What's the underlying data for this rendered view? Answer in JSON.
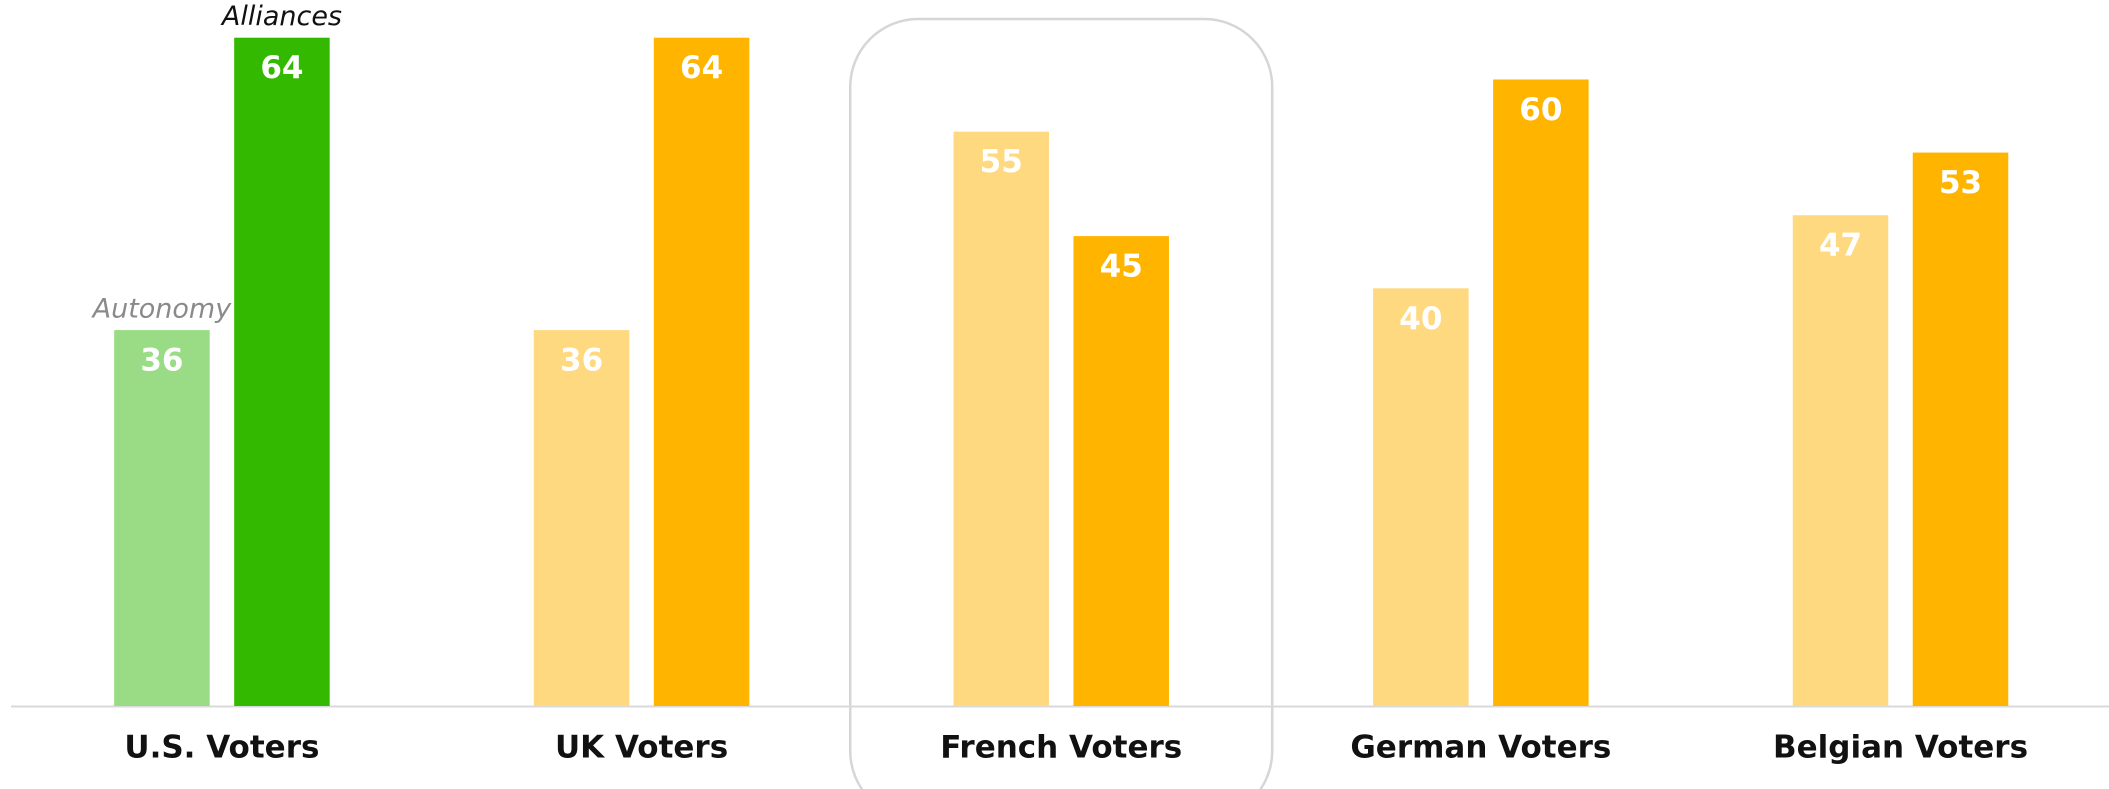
{
  "chart_data": {
    "type": "bar",
    "categories": [
      "U.S. Voters",
      "UK Voters",
      "French Voters",
      "German Voters",
      "Belgian Voters"
    ],
    "series": [
      {
        "name": "Autonomy",
        "values": [
          36,
          36,
          55,
          40,
          47
        ],
        "colors": [
          "#9adb85",
          "#ffd980",
          "#ffd980",
          "#ffd980",
          "#ffd980"
        ]
      },
      {
        "name": "Alliances",
        "values": [
          64,
          64,
          45,
          60,
          53
        ],
        "colors": [
          "#33b900",
          "#ffb500",
          "#ffb500",
          "#ffb500",
          "#ffb500"
        ]
      }
    ],
    "ylim": [
      0,
      64
    ],
    "highlight_index": 2
  }
}
